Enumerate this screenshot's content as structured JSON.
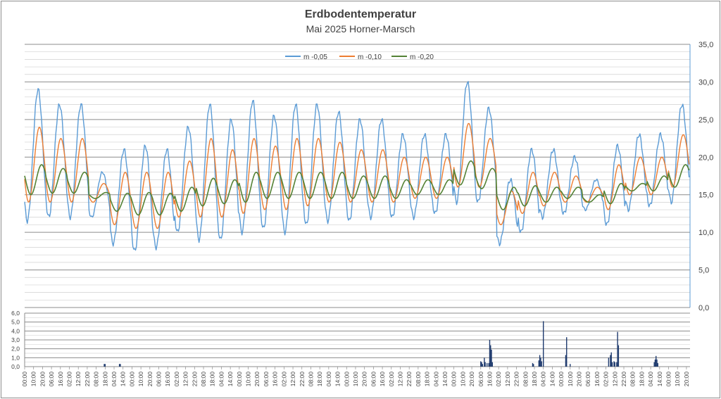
{
  "chart_data": [
    {
      "type": "line",
      "title": "Erdbodentemperatur",
      "subtitle": "Mai 2025 Horner-Marsch",
      "ylim": [
        0,
        35
      ],
      "y_ticks": [
        "0,0",
        "5,0",
        "10,0",
        "15,0",
        "20,0",
        "25,0",
        "30,0",
        "35,0"
      ],
      "y_axis_side": "right",
      "grid": true,
      "legend_position": "top",
      "series": [
        {
          "name": "m -0,05",
          "color": "#5b9bd5",
          "daily_max": [
            29.0,
            27.0,
            27.0,
            18.0,
            21.0,
            21.5,
            21.0,
            24.0,
            27.0,
            25.0,
            27.5,
            25.5,
            27.0,
            27.0,
            26.0,
            25.0,
            25.0,
            23.0,
            23.0,
            23.0,
            30.0,
            26.5,
            17.0,
            21.0,
            21.0,
            20.0,
            17.0,
            21.5,
            23.0,
            23.0,
            27.0
          ],
          "daily_min": [
            11.5,
            12.0,
            12.0,
            12.0,
            8.5,
            7.5,
            8.0,
            10.0,
            9.0,
            9.0,
            10.0,
            10.5,
            10.0,
            11.0,
            11.5,
            11.5,
            12.0,
            12.0,
            12.0,
            12.5,
            14.0,
            14.0,
            8.5,
            10.0,
            12.0,
            12.5,
            13.0,
            11.0,
            13.0,
            13.5,
            14.0
          ]
        },
        {
          "name": "m -0,10",
          "color": "#ed7d31",
          "daily_max": [
            24.0,
            22.5,
            22.5,
            16.5,
            18.0,
            18.0,
            18.0,
            19.5,
            22.5,
            21.0,
            22.5,
            21.5,
            22.5,
            22.5,
            22.0,
            21.0,
            21.0,
            20.0,
            20.0,
            20.0,
            24.5,
            22.5,
            15.5,
            18.0,
            18.0,
            17.5,
            16.0,
            19.0,
            20.0,
            20.0,
            23.0
          ],
          "daily_min": [
            14.0,
            14.0,
            14.0,
            14.0,
            11.0,
            10.5,
            10.5,
            12.0,
            12.0,
            12.0,
            12.5,
            13.0,
            13.0,
            13.5,
            14.0,
            14.0,
            14.0,
            14.0,
            14.5,
            14.5,
            16.0,
            16.0,
            11.0,
            12.5,
            13.5,
            14.0,
            14.0,
            13.0,
            15.0,
            15.0,
            16.0
          ]
        },
        {
          "name": "m -0,20",
          "color": "#548235",
          "daily_max": [
            19.0,
            18.5,
            18.0,
            15.3,
            15.2,
            15.3,
            15.2,
            16.0,
            17.2,
            17.0,
            18.0,
            18.0,
            18.0,
            18.0,
            18.0,
            17.5,
            17.5,
            17.0,
            17.0,
            17.0,
            19.5,
            18.5,
            16.0,
            16.2,
            16.0,
            16.0,
            15.0,
            16.5,
            16.5,
            17.5,
            19.0
          ],
          "daily_min": [
            15.0,
            15.2,
            15.2,
            14.5,
            12.8,
            12.3,
            12.3,
            12.8,
            13.5,
            13.8,
            14.0,
            14.5,
            14.5,
            14.5,
            14.5,
            14.5,
            14.5,
            14.5,
            15.0,
            15.0,
            16.3,
            15.8,
            13.0,
            13.5,
            14.0,
            14.5,
            14.0,
            13.8,
            15.5,
            15.5,
            16.0
          ]
        }
      ]
    },
    {
      "type": "bar",
      "ylim": [
        0,
        6
      ],
      "y_ticks": [
        "0,0",
        "1,0",
        "2,0",
        "3,0",
        "4,0",
        "5,0",
        "6,0"
      ],
      "y_axis_side": "left",
      "grid": true,
      "color": "#1f3b6e",
      "x_tick_labels": [
        "00:00",
        "10:00",
        "20:00",
        "06:00",
        "16:00",
        "02:00",
        "12:00",
        "22:00",
        "08:00",
        "18:00",
        "04:00",
        "14:00",
        "00:00",
        "10:00",
        "20:00",
        "06:00",
        "16:00",
        "02:00",
        "12:00",
        "22:00",
        "08:00",
        "18:00",
        "04:00",
        "14:00",
        "00:00",
        "10:00",
        "20:00",
        "06:00",
        "16:00",
        "02:00",
        "12:00",
        "22:00",
        "08:00",
        "18:00",
        "04:00",
        "14:00",
        "00:00",
        "10:00",
        "20:00",
        "06:00",
        "16:00",
        "02:00",
        "12:00",
        "22:00",
        "08:00",
        "18:00",
        "04:00",
        "14:00",
        "00:00",
        "10:00",
        "20:00",
        "06:00",
        "16:00",
        "02:00",
        "12:00",
        "22:00",
        "08:00",
        "18:00",
        "04:00",
        "14:00",
        "00:00",
        "10:00",
        "20:00",
        "06:00",
        "16:00",
        "02:00",
        "12:00",
        "22:00",
        "08:00",
        "18:00",
        "04:00",
        "14:00",
        "00:00",
        "10:00",
        "20:00"
      ],
      "events": [
        {
          "t": 89.0,
          "v": 0.3
        },
        {
          "t": 90.0,
          "v": 0.3
        },
        {
          "t": 106.0,
          "v": 0.3
        },
        {
          "t": 107.0,
          "v": 0.3
        },
        {
          "t": 510.0,
          "v": 0.6
        },
        {
          "t": 511.0,
          "v": 0.5
        },
        {
          "t": 512.0,
          "v": 0.3
        },
        {
          "t": 514.0,
          "v": 1.0
        },
        {
          "t": 515.0,
          "v": 0.5
        },
        {
          "t": 517.0,
          "v": 0.4
        },
        {
          "t": 519.0,
          "v": 0.4
        },
        {
          "t": 520.0,
          "v": 3.0
        },
        {
          "t": 521.0,
          "v": 2.4
        },
        {
          "t": 522.0,
          "v": 1.9
        },
        {
          "t": 523.0,
          "v": 0.5
        },
        {
          "t": 568.0,
          "v": 0.4
        },
        {
          "t": 569.0,
          "v": 0.3
        },
        {
          "t": 575.0,
          "v": 0.7
        },
        {
          "t": 576.0,
          "v": 1.3
        },
        {
          "t": 577.0,
          "v": 1.0
        },
        {
          "t": 578.0,
          "v": 0.6
        },
        {
          "t": 580.0,
          "v": 5.1
        },
        {
          "t": 605.0,
          "v": 1.3
        },
        {
          "t": 606.0,
          "v": 3.3
        },
        {
          "t": 610.0,
          "v": 0.3
        },
        {
          "t": 653.0,
          "v": 1.0
        },
        {
          "t": 655.0,
          "v": 1.3
        },
        {
          "t": 656.0,
          "v": 1.6
        },
        {
          "t": 657.0,
          "v": 0.5
        },
        {
          "t": 659.0,
          "v": 0.6
        },
        {
          "t": 660.0,
          "v": 0.5
        },
        {
          "t": 662.0,
          "v": 0.5
        },
        {
          "t": 663.0,
          "v": 3.9
        },
        {
          "t": 664.0,
          "v": 2.4
        },
        {
          "t": 704.0,
          "v": 0.5
        },
        {
          "t": 705.0,
          "v": 0.8
        },
        {
          "t": 706.0,
          "v": 1.2
        },
        {
          "t": 707.0,
          "v": 0.8
        },
        {
          "t": 708.0,
          "v": 0.4
        }
      ]
    }
  ]
}
